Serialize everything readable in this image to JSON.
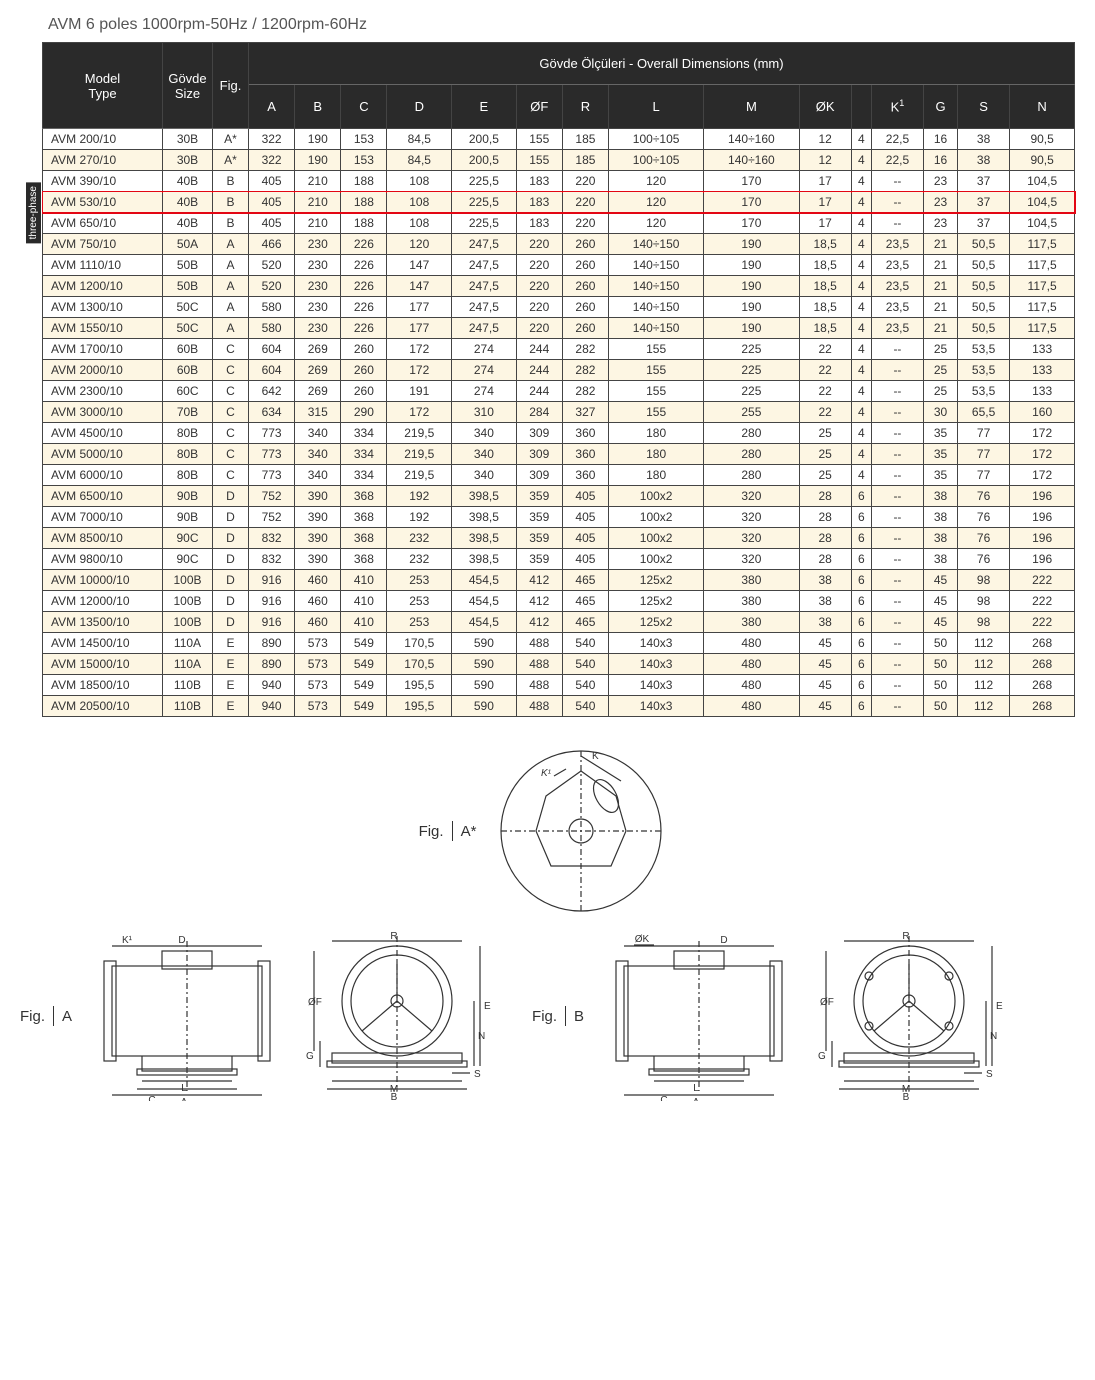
{
  "title": "AVM 6 poles 1000rpm-50Hz  / 1200rpm-60Hz",
  "side_label": "three-phase",
  "header": {
    "model_type": "Model\nType",
    "govde_size": "Gövde\nSize",
    "fig": "Fig.",
    "overall": "Gövde Ölçüleri - Overall Dimensions (mm)",
    "cols": [
      "A",
      "B",
      "C",
      "D",
      "E",
      "ØF",
      "R",
      "L",
      "M",
      "ØK",
      "",
      "K¹",
      "G",
      "S",
      "N"
    ]
  },
  "highlight_index": 3,
  "rows": [
    {
      "model": "AVM 200/10",
      "size": "30B",
      "fig": "A*",
      "A": "322",
      "B": "190",
      "C": "153",
      "D": "84,5",
      "E": "200,5",
      "OF": "155",
      "R": "185",
      "L": "100÷105",
      "M": "140÷160",
      "OK": "12",
      "OKn": "4",
      "K1": "22,5",
      "G": "16",
      "S": "38",
      "N": "90,5"
    },
    {
      "model": "AVM 270/10",
      "size": "30B",
      "fig": "A*",
      "A": "322",
      "B": "190",
      "C": "153",
      "D": "84,5",
      "E": "200,5",
      "OF": "155",
      "R": "185",
      "L": "100÷105",
      "M": "140÷160",
      "OK": "12",
      "OKn": "4",
      "K1": "22,5",
      "G": "16",
      "S": "38",
      "N": "90,5"
    },
    {
      "model": "AVM 390/10",
      "size": "40B",
      "fig": "B",
      "A": "405",
      "B": "210",
      "C": "188",
      "D": "108",
      "E": "225,5",
      "OF": "183",
      "R": "220",
      "L": "120",
      "M": "170",
      "OK": "17",
      "OKn": "4",
      "K1": "--",
      "G": "23",
      "S": "37",
      "N": "104,5"
    },
    {
      "model": "AVM 530/10",
      "size": "40B",
      "fig": "B",
      "A": "405",
      "B": "210",
      "C": "188",
      "D": "108",
      "E": "225,5",
      "OF": "183",
      "R": "220",
      "L": "120",
      "M": "170",
      "OK": "17",
      "OKn": "4",
      "K1": "--",
      "G": "23",
      "S": "37",
      "N": "104,5"
    },
    {
      "model": "AVM 650/10",
      "size": "40B",
      "fig": "B",
      "A": "405",
      "B": "210",
      "C": "188",
      "D": "108",
      "E": "225,5",
      "OF": "183",
      "R": "220",
      "L": "120",
      "M": "170",
      "OK": "17",
      "OKn": "4",
      "K1": "--",
      "G": "23",
      "S": "37",
      "N": "104,5"
    },
    {
      "model": "AVM 750/10",
      "size": "50A",
      "fig": "A",
      "A": "466",
      "B": "230",
      "C": "226",
      "D": "120",
      "E": "247,5",
      "OF": "220",
      "R": "260",
      "L": "140÷150",
      "M": "190",
      "OK": "18,5",
      "OKn": "4",
      "K1": "23,5",
      "G": "21",
      "S": "50,5",
      "N": "117,5"
    },
    {
      "model": "AVM 1110/10",
      "size": "50B",
      "fig": "A",
      "A": "520",
      "B": "230",
      "C": "226",
      "D": "147",
      "E": "247,5",
      "OF": "220",
      "R": "260",
      "L": "140÷150",
      "M": "190",
      "OK": "18,5",
      "OKn": "4",
      "K1": "23,5",
      "G": "21",
      "S": "50,5",
      "N": "117,5"
    },
    {
      "model": "AVM 1200/10",
      "size": "50B",
      "fig": "A",
      "A": "520",
      "B": "230",
      "C": "226",
      "D": "147",
      "E": "247,5",
      "OF": "220",
      "R": "260",
      "L": "140÷150",
      "M": "190",
      "OK": "18,5",
      "OKn": "4",
      "K1": "23,5",
      "G": "21",
      "S": "50,5",
      "N": "117,5"
    },
    {
      "model": "AVM 1300/10",
      "size": "50C",
      "fig": "A",
      "A": "580",
      "B": "230",
      "C": "226",
      "D": "177",
      "E": "247,5",
      "OF": "220",
      "R": "260",
      "L": "140÷150",
      "M": "190",
      "OK": "18,5",
      "OKn": "4",
      "K1": "23,5",
      "G": "21",
      "S": "50,5",
      "N": "117,5"
    },
    {
      "model": "AVM 1550/10",
      "size": "50C",
      "fig": "A",
      "A": "580",
      "B": "230",
      "C": "226",
      "D": "177",
      "E": "247,5",
      "OF": "220",
      "R": "260",
      "L": "140÷150",
      "M": "190",
      "OK": "18,5",
      "OKn": "4",
      "K1": "23,5",
      "G": "21",
      "S": "50,5",
      "N": "117,5"
    },
    {
      "model": "AVM 1700/10",
      "size": "60B",
      "fig": "C",
      "A": "604",
      "B": "269",
      "C": "260",
      "D": "172",
      "E": "274",
      "OF": "244",
      "R": "282",
      "L": "155",
      "M": "225",
      "OK": "22",
      "OKn": "4",
      "K1": "--",
      "G": "25",
      "S": "53,5",
      "N": "133"
    },
    {
      "model": "AVM 2000/10",
      "size": "60B",
      "fig": "C",
      "A": "604",
      "B": "269",
      "C": "260",
      "D": "172",
      "E": "274",
      "OF": "244",
      "R": "282",
      "L": "155",
      "M": "225",
      "OK": "22",
      "OKn": "4",
      "K1": "--",
      "G": "25",
      "S": "53,5",
      "N": "133"
    },
    {
      "model": "AVM 2300/10",
      "size": "60C",
      "fig": "C",
      "A": "642",
      "B": "269",
      "C": "260",
      "D": "191",
      "E": "274",
      "OF": "244",
      "R": "282",
      "L": "155",
      "M": "225",
      "OK": "22",
      "OKn": "4",
      "K1": "--",
      "G": "25",
      "S": "53,5",
      "N": "133"
    },
    {
      "model": "AVM 3000/10",
      "size": "70B",
      "fig": "C",
      "A": "634",
      "B": "315",
      "C": "290",
      "D": "172",
      "E": "310",
      "OF": "284",
      "R": "327",
      "L": "155",
      "M": "255",
      "OK": "22",
      "OKn": "4",
      "K1": "--",
      "G": "30",
      "S": "65,5",
      "N": "160"
    },
    {
      "model": "AVM 4500/10",
      "size": "80B",
      "fig": "C",
      "A": "773",
      "B": "340",
      "C": "334",
      "D": "219,5",
      "E": "340",
      "OF": "309",
      "R": "360",
      "L": "180",
      "M": "280",
      "OK": "25",
      "OKn": "4",
      "K1": "--",
      "G": "35",
      "S": "77",
      "N": "172"
    },
    {
      "model": "AVM 5000/10",
      "size": "80B",
      "fig": "C",
      "A": "773",
      "B": "340",
      "C": "334",
      "D": "219,5",
      "E": "340",
      "OF": "309",
      "R": "360",
      "L": "180",
      "M": "280",
      "OK": "25",
      "OKn": "4",
      "K1": "--",
      "G": "35",
      "S": "77",
      "N": "172"
    },
    {
      "model": "AVM 6000/10",
      "size": "80B",
      "fig": "C",
      "A": "773",
      "B": "340",
      "C": "334",
      "D": "219,5",
      "E": "340",
      "OF": "309",
      "R": "360",
      "L": "180",
      "M": "280",
      "OK": "25",
      "OKn": "4",
      "K1": "--",
      "G": "35",
      "S": "77",
      "N": "172"
    },
    {
      "model": "AVM 6500/10",
      "size": "90B",
      "fig": "D",
      "A": "752",
      "B": "390",
      "C": "368",
      "D": "192",
      "E": "398,5",
      "OF": "359",
      "R": "405",
      "L": "100x2",
      "M": "320",
      "OK": "28",
      "OKn": "6",
      "K1": "--",
      "G": "38",
      "S": "76",
      "N": "196"
    },
    {
      "model": "AVM 7000/10",
      "size": "90B",
      "fig": "D",
      "A": "752",
      "B": "390",
      "C": "368",
      "D": "192",
      "E": "398,5",
      "OF": "359",
      "R": "405",
      "L": "100x2",
      "M": "320",
      "OK": "28",
      "OKn": "6",
      "K1": "--",
      "G": "38",
      "S": "76",
      "N": "196"
    },
    {
      "model": "AVM 8500/10",
      "size": "90C",
      "fig": "D",
      "A": "832",
      "B": "390",
      "C": "368",
      "D": "232",
      "E": "398,5",
      "OF": "359",
      "R": "405",
      "L": "100x2",
      "M": "320",
      "OK": "28",
      "OKn": "6",
      "K1": "--",
      "G": "38",
      "S": "76",
      "N": "196"
    },
    {
      "model": "AVM 9800/10",
      "size": "90C",
      "fig": "D",
      "A": "832",
      "B": "390",
      "C": "368",
      "D": "232",
      "E": "398,5",
      "OF": "359",
      "R": "405",
      "L": "100x2",
      "M": "320",
      "OK": "28",
      "OKn": "6",
      "K1": "--",
      "G": "38",
      "S": "76",
      "N": "196"
    },
    {
      "model": "AVM 10000/10",
      "size": "100B",
      "fig": "D",
      "A": "916",
      "B": "460",
      "C": "410",
      "D": "253",
      "E": "454,5",
      "OF": "412",
      "R": "465",
      "L": "125x2",
      "M": "380",
      "OK": "38",
      "OKn": "6",
      "K1": "--",
      "G": "45",
      "S": "98",
      "N": "222"
    },
    {
      "model": "AVM 12000/10",
      "size": "100B",
      "fig": "D",
      "A": "916",
      "B": "460",
      "C": "410",
      "D": "253",
      "E": "454,5",
      "OF": "412",
      "R": "465",
      "L": "125x2",
      "M": "380",
      "OK": "38",
      "OKn": "6",
      "K1": "--",
      "G": "45",
      "S": "98",
      "N": "222"
    },
    {
      "model": "AVM 13500/10",
      "size": "100B",
      "fig": "D",
      "A": "916",
      "B": "460",
      "C": "410",
      "D": "253",
      "E": "454,5",
      "OF": "412",
      "R": "465",
      "L": "125x2",
      "M": "380",
      "OK": "38",
      "OKn": "6",
      "K1": "--",
      "G": "45",
      "S": "98",
      "N": "222"
    },
    {
      "model": "AVM 14500/10",
      "size": "110A",
      "fig": "E",
      "A": "890",
      "B": "573",
      "C": "549",
      "D": "170,5",
      "E": "590",
      "OF": "488",
      "R": "540",
      "L": "140x3",
      "M": "480",
      "OK": "45",
      "OKn": "6",
      "K1": "--",
      "G": "50",
      "S": "112",
      "N": "268"
    },
    {
      "model": "AVM 15000/10",
      "size": "110A",
      "fig": "E",
      "A": "890",
      "B": "573",
      "C": "549",
      "D": "170,5",
      "E": "590",
      "OF": "488",
      "R": "540",
      "L": "140x3",
      "M": "480",
      "OK": "45",
      "OKn": "6",
      "K1": "--",
      "G": "50",
      "S": "112",
      "N": "268"
    },
    {
      "model": "AVM 18500/10",
      "size": "110B",
      "fig": "E",
      "A": "940",
      "B": "573",
      "C": "549",
      "D": "195,5",
      "E": "590",
      "OF": "488",
      "R": "540",
      "L": "140x3",
      "M": "480",
      "OK": "45",
      "OKn": "6",
      "K1": "--",
      "G": "50",
      "S": "112",
      "N": "268"
    },
    {
      "model": "AVM 20500/10",
      "size": "110B",
      "fig": "E",
      "A": "940",
      "B": "573",
      "C": "549",
      "D": "195,5",
      "E": "590",
      "OF": "488",
      "R": "540",
      "L": "140x3",
      "M": "480",
      "OK": "45",
      "OKn": "6",
      "K1": "--",
      "G": "50",
      "S": "112",
      "N": "268"
    }
  ],
  "fig_labels": {
    "astar": "Fig.",
    "astar_v": "A*",
    "a": "Fig.",
    "a_v": "A",
    "b": "Fig.",
    "b_v": "B"
  },
  "diag_letters": {
    "K": "K",
    "K1": "K¹",
    "D": "D",
    "R": "R",
    "OF": "ØF",
    "G": "G",
    "L": "L",
    "C": "C",
    "A": "A",
    "E": "E",
    "N": "N",
    "S": "S",
    "M": "M",
    "B": "B",
    "OK": "ØK"
  }
}
